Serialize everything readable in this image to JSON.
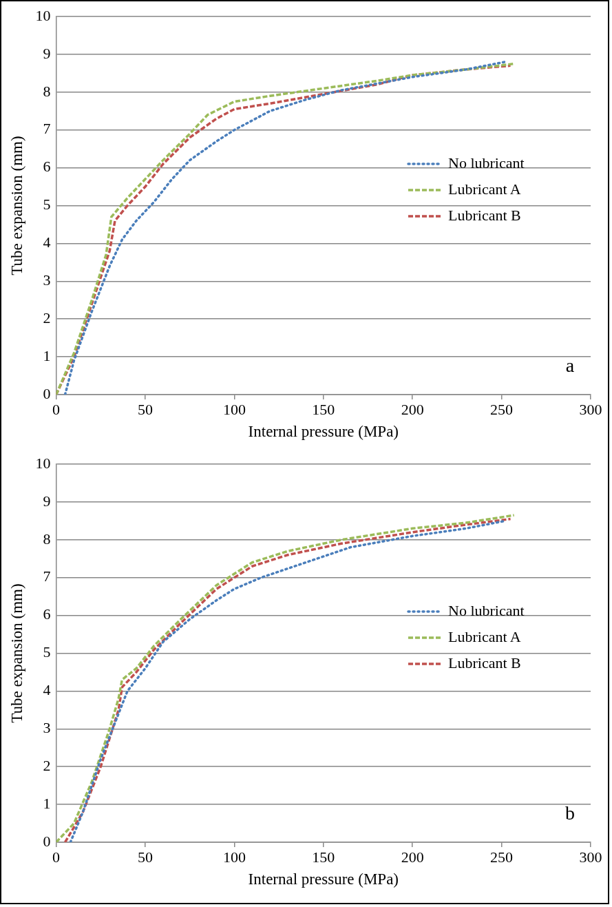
{
  "chart_data": [
    {
      "type": "line",
      "xlabel": "Internal pressure (MPa)",
      "ylabel": "Tube expansion (mm)",
      "annotations": [
        "a"
      ],
      "xlim": [
        0,
        300
      ],
      "xticks": [
        0,
        50,
        100,
        150,
        200,
        250,
        300
      ],
      "ylim": [
        0,
        10
      ],
      "yticks": [
        0,
        1,
        2,
        3,
        4,
        5,
        6,
        7,
        8,
        9,
        10
      ],
      "grid": "y",
      "legend": "right",
      "marker": "none",
      "series": [
        {
          "name": "No lubricant",
          "color": "#4a7ebb",
          "line_style": "dotted",
          "x": [
            5,
            10,
            20,
            30,
            37,
            45,
            55,
            65,
            75,
            90,
            100,
            120,
            140,
            160,
            200,
            230,
            252
          ],
          "values": [
            0,
            0.9,
            2.2,
            3.4,
            4.1,
            4.6,
            5.1,
            5.7,
            6.2,
            6.7,
            7.0,
            7.5,
            7.8,
            8.05,
            8.4,
            8.6,
            8.8
          ]
        },
        {
          "name": "Lubricant A",
          "color": "#9bbb59",
          "line_style": "dashed",
          "x": [
            0,
            10,
            20,
            28,
            31,
            40,
            50,
            60,
            75,
            85,
            100,
            120,
            150,
            180,
            200,
            230,
            257
          ],
          "values": [
            0,
            1.1,
            2.5,
            3.7,
            4.7,
            5.2,
            5.7,
            6.2,
            6.9,
            7.4,
            7.75,
            7.9,
            8.1,
            8.3,
            8.45,
            8.6,
            8.75
          ]
        },
        {
          "name": "Lubricant B",
          "color": "#c0504d",
          "line_style": "dashed",
          "x": [
            0,
            10,
            20,
            30,
            33,
            40,
            50,
            60,
            75,
            90,
            100,
            120,
            150,
            180,
            200,
            230,
            255
          ],
          "values": [
            0,
            1.0,
            2.4,
            3.8,
            4.6,
            5.0,
            5.5,
            6.1,
            6.8,
            7.3,
            7.55,
            7.7,
            7.95,
            8.2,
            8.45,
            8.6,
            8.7
          ]
        }
      ]
    },
    {
      "type": "line",
      "xlabel": "Internal pressure (MPa)",
      "ylabel": "Tube expansion (mm)",
      "annotations": [
        "b"
      ],
      "xlim": [
        0,
        300
      ],
      "xticks": [
        0,
        50,
        100,
        150,
        200,
        250,
        300
      ],
      "ylim": [
        0,
        10
      ],
      "yticks": [
        0,
        1,
        2,
        3,
        4,
        5,
        6,
        7,
        8,
        9,
        10
      ],
      "grid": "y",
      "legend": "right",
      "marker": "none",
      "series": [
        {
          "name": "No lubricant",
          "color": "#4a7ebb",
          "line_style": "dotted",
          "x": [
            8,
            15,
            25,
            35,
            40,
            50,
            60,
            75,
            90,
            100,
            115,
            140,
            165,
            200,
            230,
            252
          ],
          "values": [
            0,
            0.8,
            2.2,
            3.4,
            4.0,
            4.6,
            5.3,
            5.9,
            6.4,
            6.7,
            7.0,
            7.4,
            7.8,
            8.1,
            8.3,
            8.5
          ]
        },
        {
          "name": "Lubricant A",
          "color": "#9bbb59",
          "line_style": "dashed",
          "x": [
            0,
            10,
            20,
            30,
            35,
            37,
            45,
            55,
            70,
            90,
            110,
            130,
            160,
            200,
            230,
            257
          ],
          "values": [
            0,
            0.5,
            1.6,
            3.0,
            3.8,
            4.3,
            4.6,
            5.2,
            5.9,
            6.8,
            7.4,
            7.7,
            8.0,
            8.3,
            8.45,
            8.65
          ]
        },
        {
          "name": "Lubricant B",
          "color": "#c0504d",
          "line_style": "dashed",
          "x": [
            5,
            15,
            25,
            35,
            37,
            45,
            55,
            70,
            90,
            110,
            130,
            160,
            200,
            230,
            255
          ],
          "values": [
            0,
            0.8,
            2.0,
            3.5,
            4.1,
            4.5,
            5.1,
            5.8,
            6.7,
            7.3,
            7.6,
            7.9,
            8.2,
            8.4,
            8.55
          ]
        }
      ]
    }
  ]
}
